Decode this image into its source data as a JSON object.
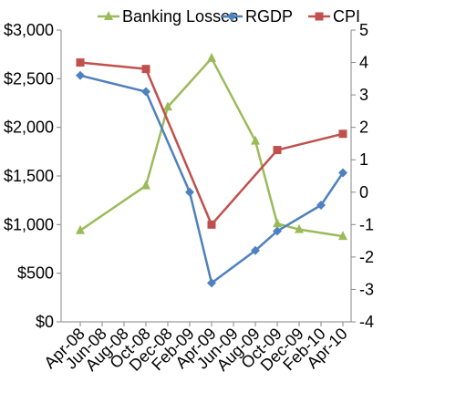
{
  "chart_data": {
    "type": "line",
    "categories": [
      "Apr-08",
      "Jun-08",
      "Aug-08",
      "Oct-08",
      "Dec-08",
      "Feb-09",
      "Apr-09",
      "Jun-09",
      "Aug-09",
      "Oct-09",
      "Dec-09",
      "Feb-10",
      "Apr-10"
    ],
    "left_axis": {
      "ylim": [
        0,
        3000
      ],
      "ticks": [
        0,
        500,
        1000,
        1500,
        2000,
        2500,
        3000
      ],
      "tick_labels": [
        "$0",
        "$500",
        "$1,000",
        "$1,500",
        "$2,000",
        "$2,500",
        "$3,000"
      ]
    },
    "right_axis": {
      "ylim": [
        -4,
        5
      ],
      "ticks": [
        -4,
        -3,
        -2,
        -1,
        0,
        1,
        2,
        3,
        4,
        5
      ],
      "tick_labels": [
        "-4",
        "-3",
        "-2",
        "-1",
        "0",
        "1",
        "2",
        "3",
        "4",
        "5"
      ]
    },
    "series": [
      {
        "name": "Banking Losses",
        "axis": "left",
        "color": "#9BBB59",
        "marker": "triangle",
        "points": [
          {
            "x": "Apr-08",
            "y": 940
          },
          {
            "x": "Oct-08",
            "y": 1400
          },
          {
            "x": "Dec-08",
            "y": 2210
          },
          {
            "x": "Apr-09",
            "y": 2710
          },
          {
            "x": "Aug-09",
            "y": 1860
          },
          {
            "x": "Oct-09",
            "y": 1010
          },
          {
            "x": "Dec-09",
            "y": 950
          },
          {
            "x": "Apr-10",
            "y": 880
          }
        ]
      },
      {
        "name": "RGDP",
        "axis": "right",
        "color": "#4F81BD",
        "marker": "diamond",
        "points": [
          {
            "x": "Apr-08",
            "y": 3.6
          },
          {
            "x": "Oct-08",
            "y": 3.1
          },
          {
            "x": "Feb-09",
            "y": 0.0
          },
          {
            "x": "Apr-09",
            "y": -2.8
          },
          {
            "x": "Aug-09",
            "y": -1.8
          },
          {
            "x": "Oct-09",
            "y": -1.2
          },
          {
            "x": "Feb-10",
            "y": -0.4
          },
          {
            "x": "Apr-10",
            "y": 0.6
          }
        ]
      },
      {
        "name": "CPI",
        "axis": "right",
        "color": "#C0504D",
        "marker": "square",
        "points": [
          {
            "x": "Apr-08",
            "y": 4.0
          },
          {
            "x": "Oct-08",
            "y": 3.8
          },
          {
            "x": "Apr-09",
            "y": -1.0
          },
          {
            "x": "Oct-09",
            "y": 1.3
          },
          {
            "x": "Apr-10",
            "y": 1.8
          }
        ]
      }
    ],
    "legend_position": "top",
    "grid": false
  }
}
